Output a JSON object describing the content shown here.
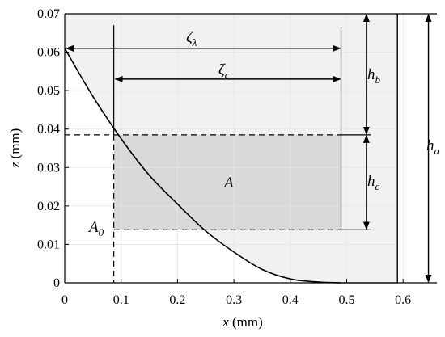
{
  "chart_data": {
    "type": "line",
    "xlabel_var": "x",
    "xlabel_unit": " (mm)",
    "ylabel_var": "z",
    "ylabel_unit": " (mm)",
    "xlim": [
      0,
      0.66
    ],
    "ylim": [
      0,
      0.07
    ],
    "x_ticks": [
      "0",
      "0.1",
      "0.2",
      "0.3",
      "0.4",
      "0.5",
      "0.6"
    ],
    "y_ticks": [
      "0",
      "0.01",
      "0.02",
      "0.03",
      "0.04",
      "0.05",
      "0.06",
      "0.07"
    ],
    "series": [
      {
        "x": [
          0,
          0.05,
          0.1,
          0.15,
          0.2,
          0.25,
          0.3,
          0.35,
          0.4,
          0.45,
          0.49
        ],
        "y": [
          0.061,
          0.0485,
          0.0375,
          0.028,
          0.0205,
          0.0135,
          0.008,
          0.0035,
          0.001,
          0.0002,
          0
        ]
      }
    ],
    "annotations": {
      "zeta_lambda": {
        "base": "ζ",
        "sub": "λ"
      },
      "zeta_c": {
        "base": "ζ",
        "sub": "c"
      },
      "h_b": {
        "base": "h",
        "sub": "b"
      },
      "h_c": {
        "base": "h",
        "sub": "c"
      },
      "h_a": {
        "base": "h",
        "sub": "a"
      },
      "A": "A",
      "A0": {
        "base": "A",
        "sub": "0"
      }
    },
    "colors": {
      "outer_region": "#f1f1f1",
      "inner_region": "#d9d9d9",
      "line": "#000000"
    }
  }
}
